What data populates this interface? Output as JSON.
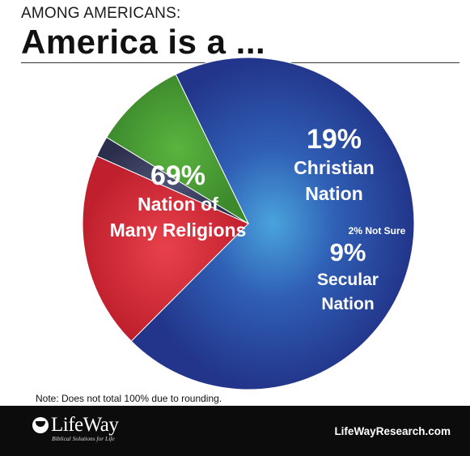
{
  "header": {
    "kicker": "AMONG AMERICANS:",
    "title": "America is a ..."
  },
  "chart_data": {
    "type": "pie",
    "slices": [
      {
        "value": 69,
        "pct_label": "69%",
        "label_lines": [
          "Nation of",
          "Many Religions"
        ],
        "color": "#2a4aa0"
      },
      {
        "value": 19,
        "pct_label": "19%",
        "label_lines": [
          "Christian",
          "Nation"
        ],
        "color": "#d8303c"
      },
      {
        "value": 2,
        "pct_label": "2% Not Sure",
        "label_lines": [],
        "color": "#3a3f63"
      },
      {
        "value": 9,
        "pct_label": "9%",
        "label_lines": [
          "Secular",
          "Nation"
        ],
        "color": "#4ea139"
      }
    ]
  },
  "note": "Note: Does not total 100% due to rounding.",
  "footer": {
    "logo_name": "LifeWay",
    "logo_tagline": "Biblical Solutions for Life",
    "website": "LifeWayResearch.com"
  }
}
